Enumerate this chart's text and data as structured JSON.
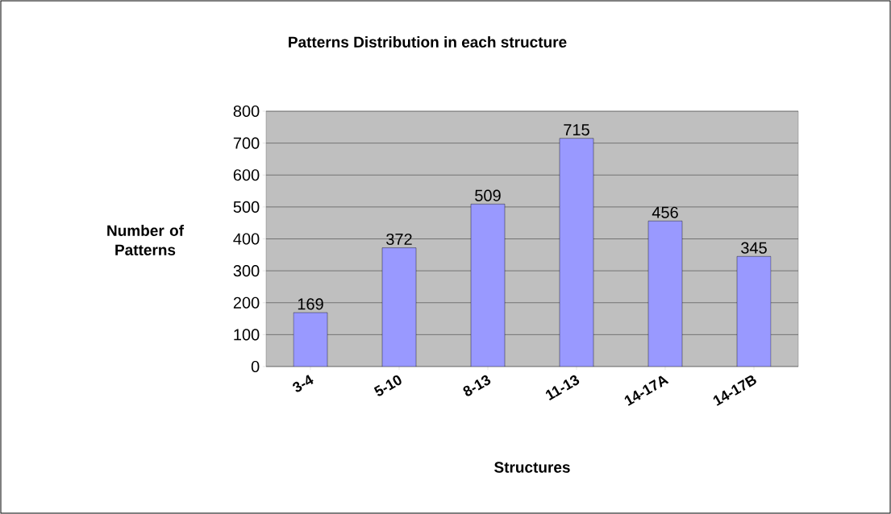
{
  "chart_data": {
    "type": "bar",
    "title": "Patterns Distribution in each structure",
    "xlabel": "Structures",
    "ylabel": "Number of Patterns",
    "categories": [
      "3-4",
      "5-10",
      "8-13",
      "11-13",
      "14-17A",
      "14-17B"
    ],
    "values": [
      169,
      372,
      509,
      715,
      456,
      345
    ],
    "color": "#9999ff",
    "ylim": [
      0,
      800
    ],
    "yticks": [
      0,
      100,
      200,
      300,
      400,
      500,
      600,
      700,
      800
    ],
    "grid": "y",
    "data_labels": true
  }
}
